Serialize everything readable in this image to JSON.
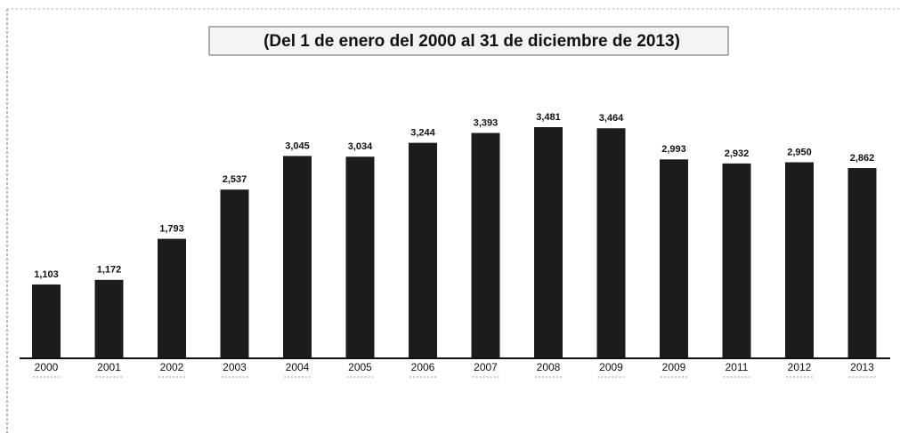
{
  "chart_data": {
    "type": "bar",
    "title": "(Del 1 de enero del 2000 al 31 de diciembre de 2013)",
    "categories": [
      "2000",
      "2001",
      "2002",
      "2003",
      "2004",
      "2005",
      "2006",
      "2007",
      "2008",
      "2009",
      "2009",
      "2011",
      "2012",
      "2013"
    ],
    "values": [
      1103,
      1172,
      1793,
      2537,
      3045,
      3034,
      3244,
      3393,
      3481,
      3464,
      2993,
      2932,
      2950,
      2862
    ],
    "value_labels": [
      "1,103",
      "1,172",
      "1,793",
      "2,537",
      "3,045",
      "3,034",
      "3,244",
      "3,393",
      "3,481",
      "3,464",
      "2,993",
      "2,932",
      "2,950",
      "2,862"
    ],
    "color": "#1c1c1c"
  }
}
